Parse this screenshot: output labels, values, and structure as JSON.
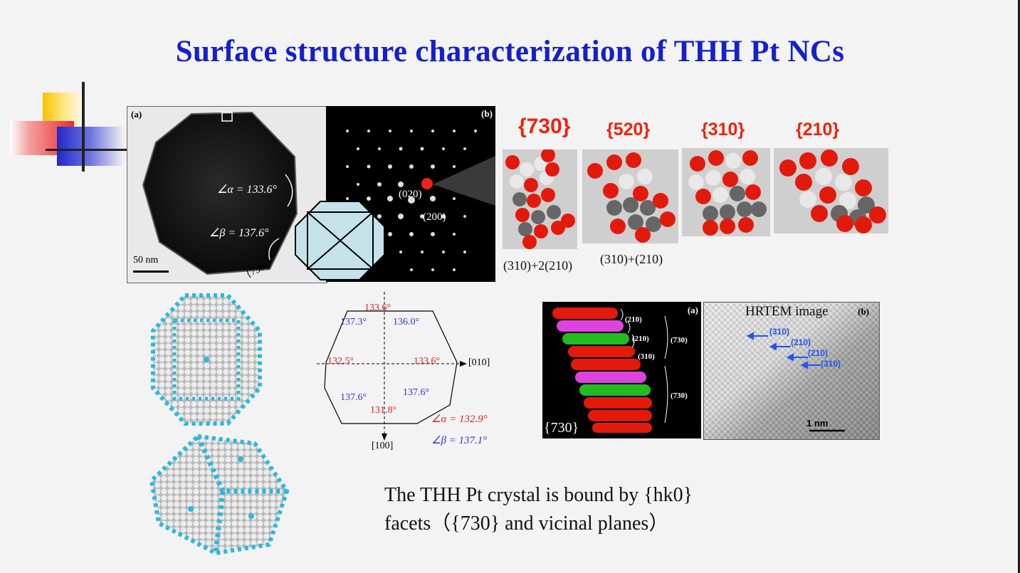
{
  "title": "Surface structure characterization of THH Pt NCs",
  "panel_a": {
    "label": "(a)",
    "alpha": "∠α = 133.6°",
    "beta": "∠β = 137.6°",
    "scale": "50 nm",
    "facet": "{730}"
  },
  "panel_b": {
    "label": "(b)",
    "spot_020": "(020)",
    "spot_200": "(200)"
  },
  "facets": [
    {
      "label": "{730}",
      "caption": "(310)+2(210)"
    },
    {
      "label": "{520}",
      "caption": "(310)+(210)"
    },
    {
      "label": "{310}",
      "caption": ""
    },
    {
      "label": "{210}",
      "caption": ""
    }
  ],
  "angle_diagram": {
    "top": "133.6°",
    "upper_left": "137.3°",
    "upper_right": "136.0°",
    "left": "132.5°",
    "right": "133.6°",
    "lower_left": "137.6°",
    "lower_right": "137.6°",
    "bottom": "131.8°",
    "axis_x": "[010]",
    "axis_y": "[100]",
    "alpha_mean": "∠α = 132.9°",
    "beta_mean": "∠β = 137.1°"
  },
  "model_panel": {
    "label": "(a)",
    "facet": "{730}",
    "steps": [
      "(210)",
      "(210)",
      "(310)"
    ],
    "groups": [
      "(730)",
      "(730)"
    ]
  },
  "hrtem": {
    "title": "HRTEM image",
    "label": "(b)",
    "steps": [
      "(310)",
      "(210)",
      "(210)",
      "(310)"
    ],
    "scale": "1 nm"
  },
  "summary": {
    "line1": "The THH Pt crystal is bound by {hk0}",
    "line2": "facets（{730} and vicinal planes）"
  },
  "colors": {
    "title": "#1620c8",
    "facet_label": "#ee2211",
    "angle_red": "#dd2222",
    "angle_blue": "#3333cc",
    "atom_red": "#e21a0c",
    "atom_white": "#e8e8e8",
    "atom_gray": "#666666",
    "atom_cyan": "#2bb8dc",
    "atom_magenta": "#dd44dd",
    "atom_green": "#22bb22"
  }
}
